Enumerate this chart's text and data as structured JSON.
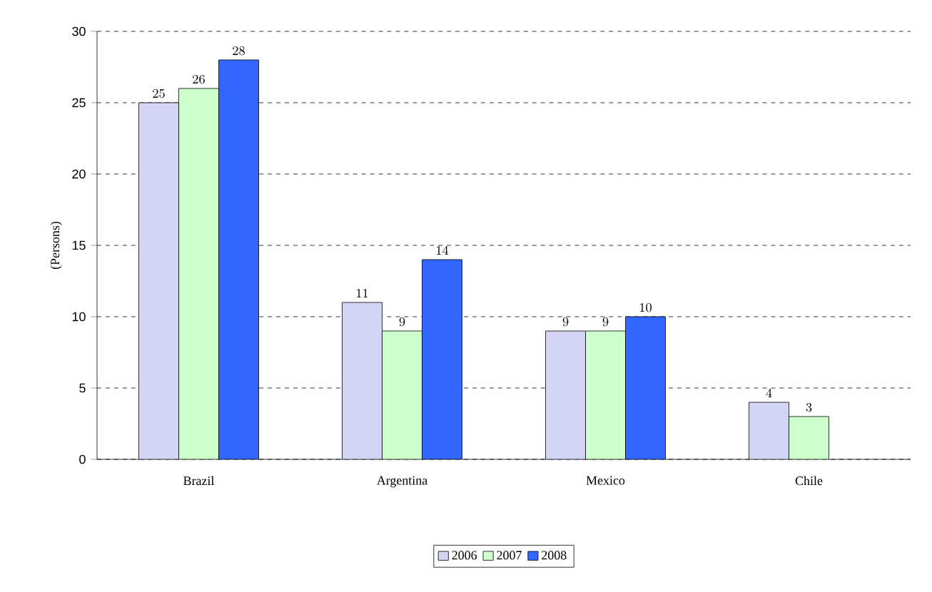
{
  "chart_data": {
    "type": "bar",
    "ylabel": "(Persons)",
    "categories": [
      "Brazil",
      "Argentina",
      "Mexico",
      "Chile"
    ],
    "series": [
      {
        "name": "2006",
        "color": "#d4d4f4",
        "values": [
          25,
          11,
          9,
          4
        ]
      },
      {
        "name": "2007",
        "color": "#ccffcc",
        "values": [
          26,
          9,
          9,
          3
        ]
      },
      {
        "name": "2008",
        "color": "#3366ff",
        "values": [
          28,
          14,
          10,
          null
        ]
      }
    ],
    "ylim": [
      0,
      30
    ],
    "yticks": [
      0,
      5,
      10,
      15,
      20,
      25,
      30
    ],
    "grid": "y",
    "legend": "bottom",
    "data_labels": true
  }
}
